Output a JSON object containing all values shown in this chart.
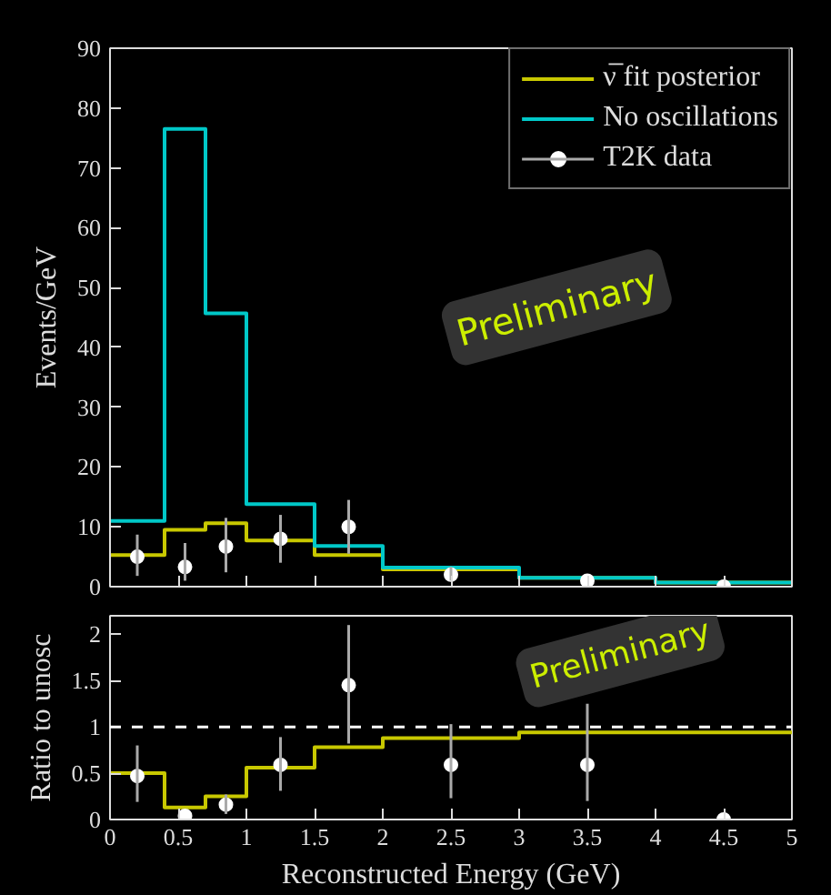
{
  "chart_data": [
    {
      "type": "histogram",
      "ylabel": "Events/GeV",
      "bins": [
        0,
        0.4,
        0.7,
        1.0,
        1.5,
        2.0,
        3.0,
        4.0,
        5.0
      ],
      "xlim": [
        0,
        5
      ],
      "xticks": [
        0,
        0.5,
        1,
        1.5,
        2,
        2.5,
        3,
        3.5,
        4,
        4.5,
        5
      ],
      "ylim": [
        0,
        90
      ],
      "yticks": [
        0,
        10,
        20,
        30,
        40,
        50,
        60,
        70,
        80,
        90
      ],
      "tick_labels": "y",
      "grid": false,
      "legend": "top right",
      "series": [
        {
          "name": "ν̅ fit posterior",
          "color": "#c8c800",
          "values": [
            5.3,
            9.5,
            10.6,
            7.7,
            5.3,
            2.9,
            1.5,
            0.7
          ]
        },
        {
          "name": "No oscillations",
          "color": "#00c8c8",
          "values": [
            11,
            76.5,
            45.7,
            13.8,
            6.8,
            3.2,
            1.5,
            0.7
          ]
        },
        {
          "name": "T2K data",
          "type": "scatter",
          "marker": "circle",
          "color": "#ffffff",
          "x": [
            0.2,
            0.55,
            0.85,
            1.25,
            1.75,
            2.5,
            3.5,
            4.5
          ],
          "values": [
            5,
            3.3,
            6.7,
            8,
            10,
            2,
            1,
            0
          ],
          "errors": [
            [
              1.8,
              8.7
            ],
            [
              1.0,
              7.3
            ],
            [
              2.4,
              11.5
            ],
            [
              4,
              12
            ],
            [
              5.5,
              14.5
            ],
            [
              1,
              3.3
            ],
            null,
            null
          ]
        }
      ],
      "annotations": [
        "Preliminary"
      ]
    },
    {
      "type": "histogram",
      "ylabel": "Ratio to unosc",
      "xlabel": "Reconstructed Energy (GeV)",
      "bins": [
        0,
        0.4,
        0.7,
        1.0,
        1.5,
        2.0,
        3.0,
        4.0,
        5.0
      ],
      "xlim": [
        0,
        5
      ],
      "xticks": [
        0,
        0.5,
        1,
        1.5,
        2,
        2.5,
        3,
        3.5,
        4,
        4.5,
        5
      ],
      "ylim": [
        0,
        2.2
      ],
      "yticks": [
        0,
        0.5,
        1,
        1.5,
        2
      ],
      "grid": false,
      "series": [
        {
          "color": "#c8c800",
          "values": [
            0.5,
            0.13,
            0.25,
            0.56,
            0.78,
            0.88,
            0.94,
            0.94
          ]
        },
        {
          "type": "scatter",
          "marker": "circle",
          "color": "#ffffff",
          "x": [
            0.2,
            0.55,
            0.85,
            1.25,
            1.75,
            2.5,
            3.5,
            4.5
          ],
          "values": [
            0.47,
            0.04,
            0.16,
            0.59,
            1.45,
            0.59,
            0.59,
            0.0
          ],
          "errors": [
            [
              0.19,
              0.8
            ],
            null,
            [
              0.06,
              0.27
            ],
            [
              0.31,
              0.89
            ],
            [
              0.82,
              2.1
            ],
            [
              0.23,
              1.03
            ],
            [
              0.2,
              1.25
            ],
            null
          ]
        }
      ],
      "ref_lines": [
        {
          "axis": "y",
          "value": 1,
          "color": "#ffffff",
          "line_style": "dashed"
        }
      ],
      "annotations": [
        "Preliminary"
      ]
    }
  ]
}
